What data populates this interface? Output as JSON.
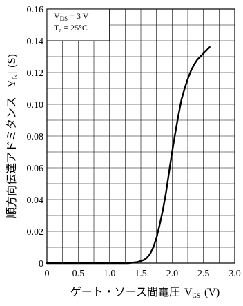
{
  "chart_data": {
    "type": "line",
    "title": "",
    "xlabel": "ゲート・ソース間電圧",
    "xlabel_symbol": "V",
    "xlabel_symbol_sub": "GS",
    "xlabel_unit": "(V)",
    "ylabel": "順方向伝達アドミタンス",
    "ylabel_symbol": "Y",
    "ylabel_symbol_sub": "fs",
    "ylabel_unit": "(S)",
    "xlim": [
      0,
      3.0
    ],
    "ylim": [
      0,
      0.16
    ],
    "grid": true,
    "x_ticks": [
      0,
      0.5,
      1.0,
      1.5,
      2.0,
      2.5,
      3.0
    ],
    "x_tick_labels": [
      "0",
      "0.5",
      "1.0",
      "1.5",
      "2.0",
      "2.5",
      "3.0"
    ],
    "y_ticks": [
      0,
      0.02,
      0.04,
      0.06,
      0.08,
      0.1,
      0.12,
      0.14,
      0.16
    ],
    "y_tick_labels": [
      "0",
      "0.02",
      "0.04",
      "0.06",
      "0.08",
      "0.10",
      "0.12",
      "0.14",
      "0.16"
    ],
    "annotations": {
      "vds_symbol": "V",
      "vds_sub": "DS",
      "vds_value": " = 3 V",
      "ta_symbol": "T",
      "ta_sub": "a",
      "ta_value": " = 25°C"
    },
    "series": [
      {
        "x": [
          0,
          1.0,
          1.3,
          1.45,
          1.55,
          1.6,
          1.65,
          1.7,
          1.75,
          1.8,
          1.85,
          1.9,
          1.95,
          2.0,
          2.05,
          2.1,
          2.15,
          2.2,
          2.25,
          2.3,
          2.35,
          2.4,
          2.45,
          2.5,
          2.55,
          2.6
        ],
        "y": [
          0,
          0,
          0,
          0.0007,
          0.002,
          0.0035,
          0.006,
          0.01,
          0.016,
          0.024,
          0.033,
          0.044,
          0.057,
          0.07,
          0.082,
          0.093,
          0.103,
          0.11,
          0.116,
          0.121,
          0.125,
          0.128,
          0.13,
          0.132,
          0.134,
          0.136
        ]
      }
    ]
  }
}
